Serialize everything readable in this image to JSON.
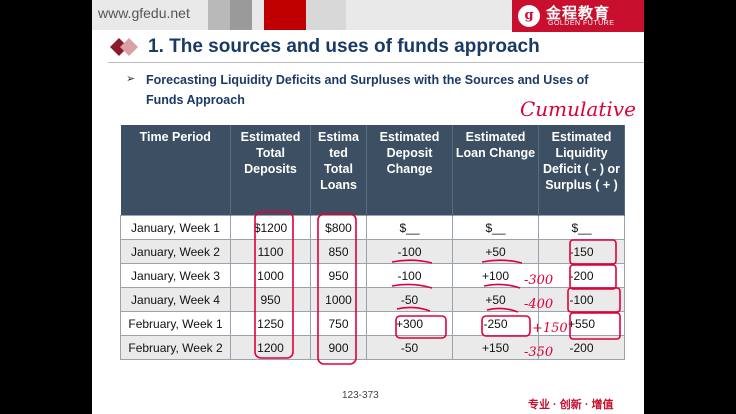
{
  "site": {
    "url": "www.gfedu.net"
  },
  "brand": {
    "logo_char": "g",
    "name_cn": "金程教育",
    "name_en": "GOLDEN FUTURE"
  },
  "slide": {
    "title": "1. The sources and uses of funds approach",
    "bullet": "Forecasting Liquidity Deficits and Surpluses with the Sources and Uses of Funds Approach",
    "page_number": "123-373",
    "slogan": "专业 · 创新 · 增值"
  },
  "table": {
    "headers": [
      "Time Period",
      "Estimated Total Deposits",
      "Estima ted Total Loans",
      "Estimated Deposit Change",
      "Estimated Loan Change",
      "Estimated Liquidity Deficit ( - ) or Surplus ( + )"
    ],
    "rows": [
      [
        "January, Week 1",
        "$1200",
        "$800",
        "$__",
        "$__",
        "$__"
      ],
      [
        "January, Week 2",
        "1100",
        "850",
        "-100",
        "+50",
        "-150"
      ],
      [
        "January, Week 3",
        "1000",
        "950",
        "-100",
        "+100",
        "-200"
      ],
      [
        "January, Week 4",
        "950",
        "1000",
        "-50",
        "+50",
        "-100"
      ],
      [
        "February, Week 1",
        "1250",
        "750",
        "+300",
        "-250",
        "+550"
      ],
      [
        "February, Week 2",
        "1200",
        "900",
        "-50",
        "+150",
        "-200"
      ]
    ]
  },
  "annotations": {
    "word": "Cumulative",
    "side_notes": [
      "-300",
      "-400",
      "+150",
      "-350"
    ]
  },
  "colors": {
    "accent_red": "#c8102e",
    "header_bg": "#3d4f63",
    "title_blue": "#1a3a66",
    "ink": "#e0003a"
  }
}
